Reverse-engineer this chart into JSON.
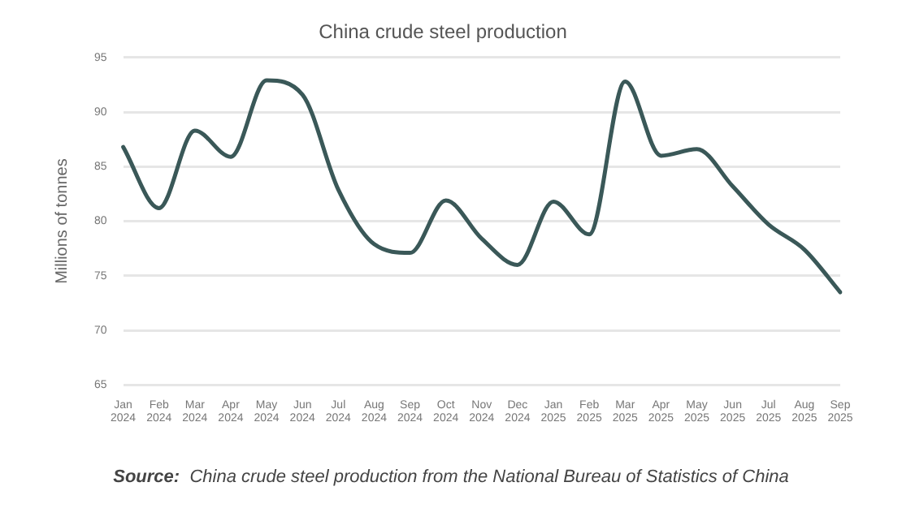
{
  "chart_data": {
    "type": "line",
    "title": "China crude steel production",
    "ylabel": "Millions of tonnes",
    "categories": [
      "Jan 2024",
      "Feb 2024",
      "Mar 2024",
      "Apr 2024",
      "May 2024",
      "Jun 2024",
      "Jul 2024",
      "Aug 2024",
      "Sep 2024",
      "Oct 2024",
      "Nov 2024",
      "Dec 2024",
      "Jan 2025",
      "Feb 2025",
      "Mar 2025",
      "Apr 2025",
      "May 2025",
      "Jun 2025",
      "Jul 2025",
      "Aug 2025",
      "Sep 2025"
    ],
    "series": [
      {
        "color": "#3a5858",
        "values": [
          86.8,
          81.2,
          88.3,
          85.9,
          92.9,
          91.6,
          82.9,
          77.9,
          77.1,
          81.9,
          78.4,
          76.0,
          81.8,
          78.8,
          92.8,
          86.0,
          86.6,
          83.2,
          79.7,
          77.4,
          73.5
        ]
      }
    ],
    "ylim": [
      65,
      95
    ],
    "yticks": [
      65,
      70,
      75,
      80,
      85,
      90,
      95
    ],
    "grid": "y",
    "legend": false,
    "marker": "none",
    "line_style": "solid",
    "annotations": [
      "Source:  China crude steel production from the National Bureau of Statistics of China"
    ]
  }
}
